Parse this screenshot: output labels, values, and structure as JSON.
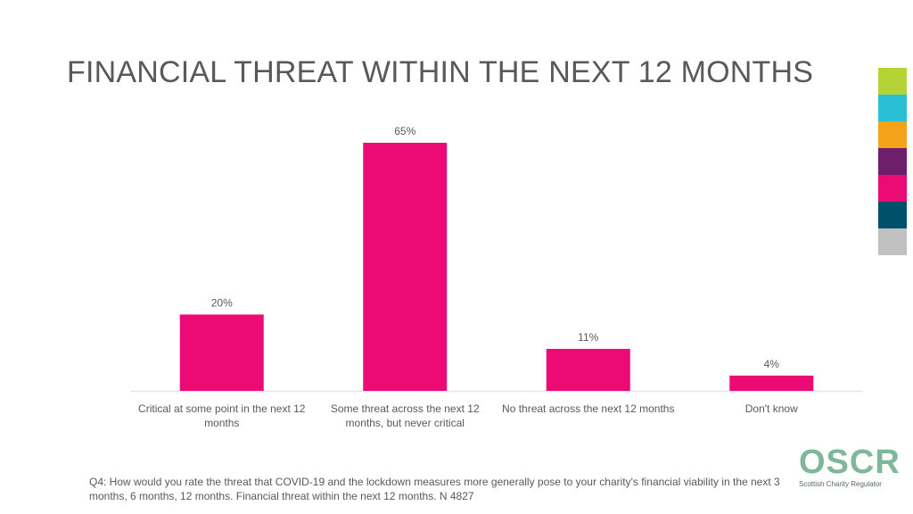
{
  "page": {
    "title": "FINANCIAL THREAT WITHIN THE NEXT 12 MONTHS",
    "footnote": "Q4: How would you rate the threat that COVID-19 and the lockdown measures more generally pose to your charity's financial viability in the next 3 months, 6 months, 12 months. Financial threat within the next 12 months. N 4827",
    "swatch_colors": [
      "#b5d334",
      "#2bbfd6",
      "#f5a21b",
      "#6e1f6b",
      "#ec0b74",
      "#00506b",
      "#c0c0c0"
    ],
    "logo": {
      "text": "OSCR",
      "subtitle": "Scottish Charity Regulator"
    }
  },
  "chart_data": {
    "type": "bar",
    "title": "FINANCIAL THREAT WITHIN THE NEXT 12 MONTHS",
    "categories": [
      "Critical at some point in the next 12 months",
      "Some threat across the next 12 months, but never critical",
      "No threat across the next 12 months",
      "Don't know"
    ],
    "values": [
      20,
      65,
      11,
      4
    ],
    "value_labels": [
      "20%",
      "65%",
      "11%",
      "4%"
    ],
    "unit": "%",
    "ylim": [
      0,
      65
    ],
    "bar_color": "#ec0b74",
    "grid": false,
    "legend": false
  }
}
